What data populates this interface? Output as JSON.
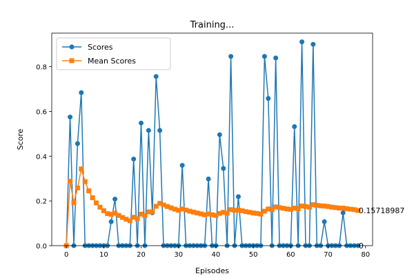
{
  "chart_data": {
    "type": "line",
    "title": "Training...",
    "xlabel": "Episodes",
    "ylabel": "Score",
    "xlim": [
      -3.9,
      81.9
    ],
    "ylim": [
      0,
      0.95
    ],
    "xticks": [
      0,
      10,
      20,
      30,
      40,
      50,
      60,
      70,
      80
    ],
    "yticks": [
      0.0,
      0.2,
      0.4,
      0.6,
      0.8
    ],
    "xtick_labels": [
      "0",
      "10",
      "20",
      "30",
      "40",
      "50",
      "60",
      "70",
      "80"
    ],
    "ytick_labels": [
      "0.0",
      "0.2",
      "0.4",
      "0.6",
      "0.8"
    ],
    "grid": false,
    "legend_position": "upper-left",
    "series": [
      {
        "name": "Scores",
        "color": "#1f77b4",
        "marker": "circle",
        "values": [
          0,
          0.575,
          0,
          0.456,
          0.684,
          0,
          0,
          0,
          0,
          0,
          0,
          0,
          0.107,
          0.208,
          0,
          0,
          0,
          0,
          0.387,
          0,
          0.548,
          0,
          0.515,
          0.147,
          0.756,
          0.515,
          0,
          0,
          0,
          0,
          0,
          0.359,
          0,
          0,
          0,
          0,
          0,
          0,
          0.298,
          0,
          0,
          0.496,
          0.345,
          0,
          0.846,
          0,
          0.219,
          0,
          0,
          0,
          0,
          0,
          0,
          0.846,
          0.658,
          0,
          0.839,
          0,
          0,
          0,
          0,
          0.532,
          0,
          0.911,
          0,
          0,
          0.9,
          0,
          0,
          0.107,
          0,
          0,
          0,
          0,
          0.147,
          0,
          0,
          0,
          0
        ]
      },
      {
        "name": "Mean Scores",
        "color": "#ff7f0e",
        "marker": "square",
        "values": [
          0,
          0.288,
          0.192,
          0.258,
          0.343,
          0.286,
          0.245,
          0.214,
          0.191,
          0.172,
          0.156,
          0.143,
          0.14,
          0.145,
          0.135,
          0.126,
          0.118,
          0.111,
          0.127,
          0.12,
          0.141,
          0.134,
          0.151,
          0.151,
          0.176,
          0.189,
          0.182,
          0.175,
          0.169,
          0.163,
          0.158,
          0.164,
          0.159,
          0.154,
          0.15,
          0.146,
          0.142,
          0.138,
          0.142,
          0.138,
          0.135,
          0.144,
          0.149,
          0.145,
          0.161,
          0.158,
          0.159,
          0.156,
          0.152,
          0.149,
          0.146,
          0.144,
          0.141,
          0.154,
          0.164,
          0.161,
          0.173,
          0.17,
          0.167,
          0.164,
          0.162,
          0.168,
          0.165,
          0.177,
          0.175,
          0.172,
          0.183,
          0.18,
          0.178,
          0.177,
          0.175,
          0.172,
          0.17,
          0.168,
          0.168,
          0.165,
          0.163,
          0.161,
          0.157
        ]
      }
    ],
    "annotations": [
      {
        "text": "0.15718987",
        "x": 78,
        "y": 0.157
      },
      {
        "text": "0",
        "x": 78,
        "y": 0
      }
    ]
  }
}
